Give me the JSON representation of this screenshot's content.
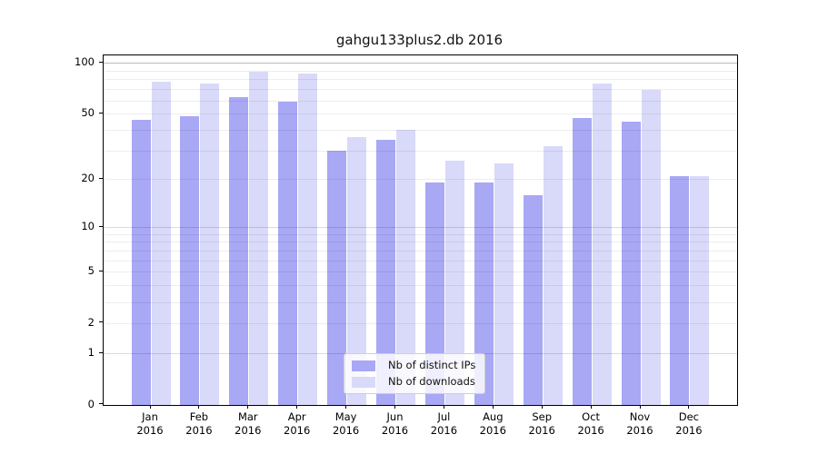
{
  "chart_data": {
    "type": "bar",
    "title": "gahgu133plus2.db 2016",
    "year_label": "2016",
    "categories": [
      "Jan",
      "Feb",
      "Mar",
      "Apr",
      "May",
      "Jun",
      "Jul",
      "Aug",
      "Sep",
      "Oct",
      "Nov",
      "Dec"
    ],
    "series": [
      {
        "name": "Nb of distinct IPs",
        "color": "#a8a8f5",
        "values": [
          46,
          48,
          63,
          59,
          30,
          35,
          19,
          19,
          16,
          47,
          45,
          21
        ]
      },
      {
        "name": "Nb of downloads",
        "color": "#d9d9f9",
        "values": [
          77,
          76,
          89,
          87,
          36,
          40,
          26,
          25,
          32,
          76,
          69,
          21
        ]
      }
    ],
    "xlabel": "",
    "ylabel": "",
    "yscale": "log1p",
    "ylim": [
      0,
      111
    ],
    "y_tick_labels": [
      100,
      50,
      20,
      10,
      5,
      2,
      1,
      0
    ],
    "gridline_values_minor": [
      2,
      3,
      4,
      5,
      6,
      7,
      8,
      9,
      20,
      30,
      40,
      50,
      60,
      70,
      80,
      90
    ],
    "gridline_values_decade": [
      1,
      10,
      100
    ],
    "grid": true,
    "legend_position": "lower center",
    "background_color": "#ffffff"
  }
}
